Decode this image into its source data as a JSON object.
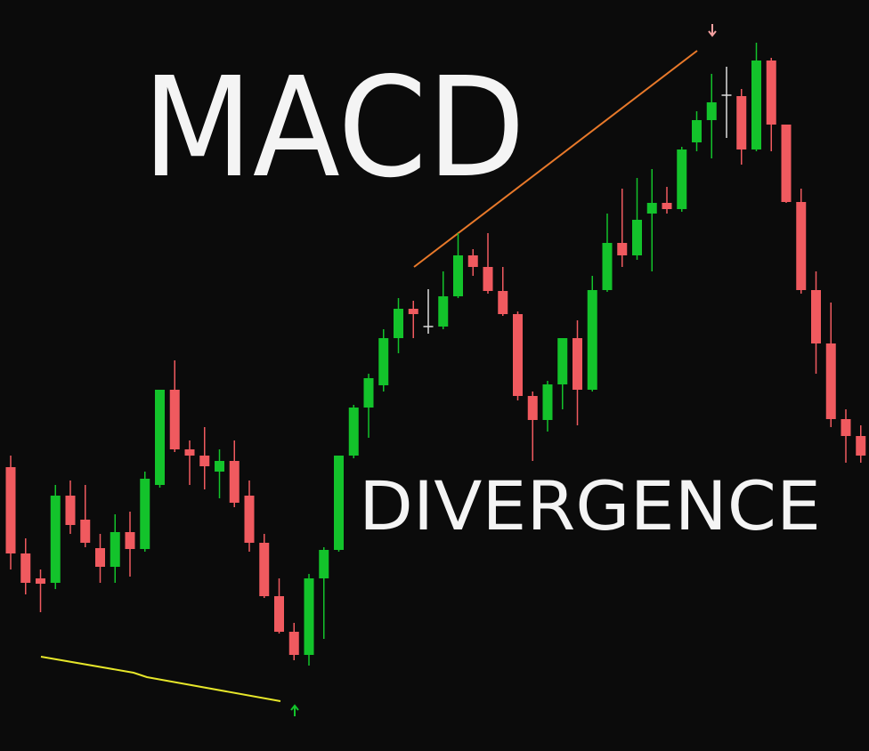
{
  "chart_data": {
    "type": "candlestick",
    "title": "MACD",
    "subtitle": "DIVERGENCE",
    "up_color": "#13c32b",
    "down_color": "#f05a5f",
    "doji_color": "#dddddd",
    "ylim": [
      0,
      844
    ],
    "open": [
      319,
      222,
      194,
      189,
      287,
      260,
      228,
      207,
      246,
      227,
      299,
      406,
      339,
      332,
      314,
      326,
      287,
      234,
      174,
      134,
      108,
      194,
      226,
      332,
      386,
      411,
      464,
      497,
      477,
      477,
      511,
      557,
      544,
      517,
      491,
      399,
      372,
      412,
      464,
      406,
      518,
      571,
      557,
      604,
      616,
      609,
      684,
      709,
      737,
      736,
      676,
      776,
      704,
      617,
      518,
      458,
      373,
      354
    ],
    "high": [
      332,
      239,
      204,
      299,
      304,
      299,
      244,
      266,
      269,
      314,
      406,
      439,
      349,
      364,
      339,
      349,
      304,
      244,
      194,
      144,
      199,
      229,
      332,
      389,
      424,
      474,
      509,
      506,
      519,
      539,
      582,
      564,
      582,
      544,
      494,
      404,
      416,
      464,
      484,
      534,
      604,
      632,
      644,
      654,
      634,
      679,
      719,
      761,
      769,
      744,
      796,
      779,
      704,
      632,
      539,
      504,
      384,
      366
    ],
    "low": [
      204,
      176,
      156,
      182,
      244,
      229,
      189,
      189,
      196,
      224,
      296,
      336,
      299,
      294,
      284,
      274,
      224,
      172,
      132,
      102,
      96,
      126,
      224,
      329,
      352,
      404,
      447,
      464,
      469,
      474,
      509,
      534,
      514,
      489,
      394,
      326,
      359,
      384,
      366,
      404,
      516,
      544,
      552,
      539,
      604,
      606,
      674,
      666,
      689,
      659,
      674,
      674,
      616,
      514,
      424,
      364,
      324,
      324
    ],
    "close": [
      222,
      189,
      188,
      287,
      254,
      234,
      207,
      246,
      227,
      306,
      406,
      339,
      332,
      320,
      326,
      279,
      234,
      174,
      134,
      108,
      194,
      226,
      332,
      386,
      419,
      464,
      497,
      491,
      477,
      511,
      557,
      544,
      517,
      491,
      399,
      372,
      412,
      464,
      406,
      518,
      571,
      557,
      597,
      616,
      609,
      676,
      709,
      729,
      737,
      676,
      776,
      704,
      617,
      518,
      458,
      373,
      354,
      332
    ]
  }
}
